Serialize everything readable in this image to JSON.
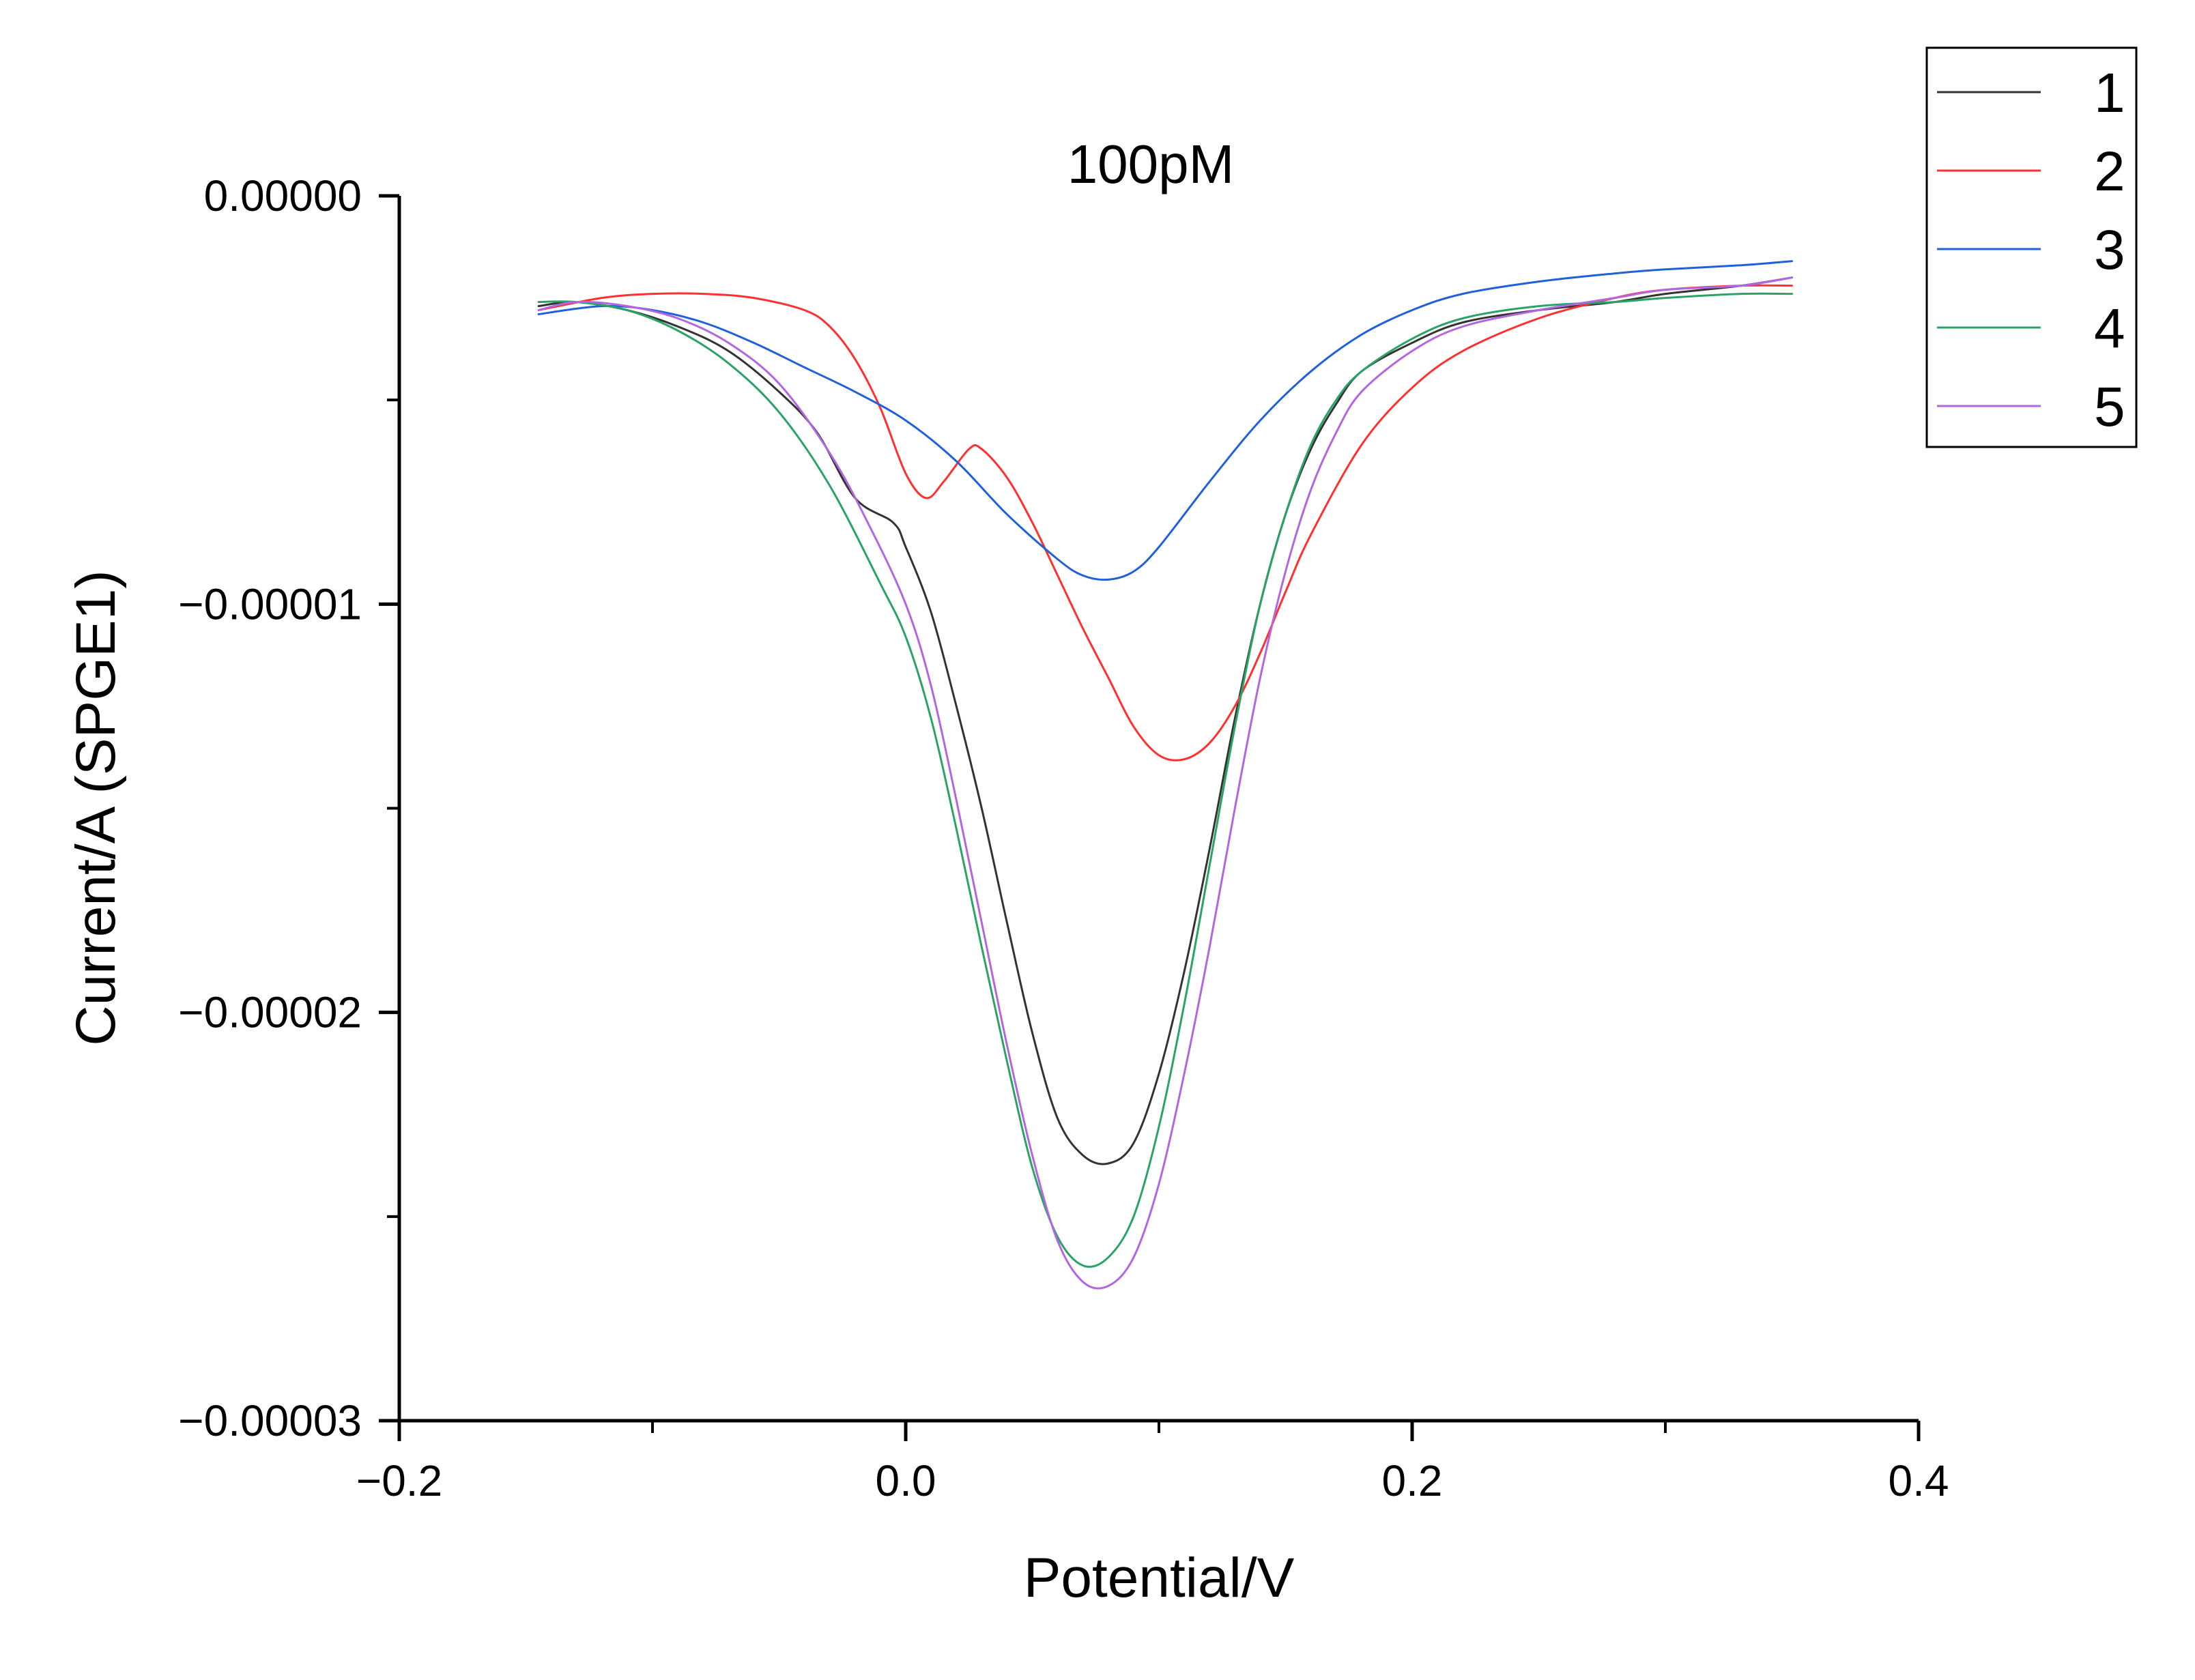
{
  "chart_data": {
    "type": "line",
    "title": "100pM",
    "xlabel": "Potential/V",
    "ylabel": "Current/A (SPGE1)",
    "xlim": [
      -0.2,
      0.4
    ],
    "ylim": [
      -3e-05,
      0.0
    ],
    "xticks": [
      -0.2,
      0.0,
      0.2,
      0.4
    ],
    "xtick_labels": [
      "−0.2",
      "0.0",
      "0.2",
      "0.4"
    ],
    "yticks": [
      0.0,
      -1e-05,
      -2e-05,
      -3e-05
    ],
    "ytick_labels": [
      "0.00000",
      "−0.00001",
      "−0.00002",
      "−0.00003"
    ],
    "legend_position": "top-right",
    "grid": false,
    "series": [
      {
        "name": "1",
        "color": "#333333",
        "x": [
          -0.145,
          -0.13,
          -0.11,
          -0.09,
          -0.07,
          -0.05,
          -0.035,
          -0.02,
          -0.005,
          0.0,
          0.01,
          0.02,
          0.03,
          0.04,
          0.05,
          0.06,
          0.07,
          0.08,
          0.09,
          0.1,
          0.11,
          0.12,
          0.13,
          0.14,
          0.15,
          0.16,
          0.17,
          0.18,
          0.2,
          0.22,
          0.25,
          0.28,
          0.3,
          0.33,
          0.35
        ],
        "y": [
          -2.7e-06,
          -2.6e-06,
          -2.8e-06,
          -3.2e-06,
          -3.8e-06,
          -4.8e-06,
          -5.8e-06,
          -7.4e-06,
          -8e-06,
          -8.6e-06,
          -1.02e-05,
          -1.25e-05,
          -1.5e-05,
          -1.78e-05,
          -2.05e-05,
          -2.26e-05,
          -2.35e-05,
          -2.37e-05,
          -2.32e-05,
          -2.15e-05,
          -1.9e-05,
          -1.6e-05,
          -1.28e-05,
          -1e-05,
          -7.8e-06,
          -6.2e-06,
          -5.1e-06,
          -4.3e-06,
          -3.6e-06,
          -3.1e-06,
          -2.8e-06,
          -2.6e-06,
          -2.4e-06,
          -2.2e-06,
          -2e-06
        ]
      },
      {
        "name": "2",
        "color": "#ff3030",
        "x": [
          -0.145,
          -0.12,
          -0.1,
          -0.08,
          -0.06,
          -0.04,
          -0.03,
          -0.02,
          -0.01,
          0.0,
          0.008,
          0.015,
          0.025,
          0.03,
          0.04,
          0.05,
          0.06,
          0.07,
          0.08,
          0.09,
          0.1,
          0.11,
          0.12,
          0.13,
          0.14,
          0.15,
          0.16,
          0.18,
          0.2,
          0.22,
          0.25,
          0.28,
          0.3,
          0.33,
          0.35
        ],
        "y": [
          -2.8e-06,
          -2.5e-06,
          -2.4e-06,
          -2.4e-06,
          -2.5e-06,
          -2.8e-06,
          -3.2e-06,
          -4e-06,
          -5.2e-06,
          -6.8e-06,
          -7.4e-06,
          -7e-06,
          -6.2e-06,
          -6.2e-06,
          -6.9e-06,
          -8e-06,
          -9.3e-06,
          -1.06e-05,
          -1.18e-05,
          -1.3e-05,
          -1.37e-05,
          -1.38e-05,
          -1.34e-05,
          -1.25e-05,
          -1.12e-05,
          -9.7e-06,
          -8.3e-06,
          -6.1e-06,
          -4.7e-06,
          -3.8e-06,
          -3e-06,
          -2.5e-06,
          -2.3e-06,
          -2.2e-06,
          -2.2e-06
        ]
      },
      {
        "name": "3",
        "color": "#2060d8",
        "x": [
          -0.145,
          -0.12,
          -0.1,
          -0.08,
          -0.06,
          -0.04,
          -0.02,
          0.0,
          0.02,
          0.04,
          0.06,
          0.07,
          0.08,
          0.09,
          0.1,
          0.12,
          0.14,
          0.16,
          0.18,
          0.2,
          0.22,
          0.25,
          0.28,
          0.3,
          0.33,
          0.35
        ],
        "y": [
          -2.9e-06,
          -2.7e-06,
          -2.8e-06,
          -3.1e-06,
          -3.6e-06,
          -4.2e-06,
          -4.8e-06,
          -5.5e-06,
          -6.5e-06,
          -7.8e-06,
          -8.9e-06,
          -9.3e-06,
          -9.4e-06,
          -9.2e-06,
          -8.6e-06,
          -7e-06,
          -5.5e-06,
          -4.3e-06,
          -3.4e-06,
          -2.8e-06,
          -2.4e-06,
          -2.1e-06,
          -1.9e-06,
          -1.8e-06,
          -1.7e-06,
          -1.6e-06
        ]
      },
      {
        "name": "4",
        "color": "#2aa366",
        "x": [
          -0.145,
          -0.13,
          -0.11,
          -0.09,
          -0.07,
          -0.05,
          -0.03,
          -0.01,
          0.0,
          0.01,
          0.02,
          0.03,
          0.04,
          0.05,
          0.06,
          0.07,
          0.08,
          0.09,
          0.1,
          0.11,
          0.12,
          0.13,
          0.14,
          0.15,
          0.16,
          0.17,
          0.18,
          0.2,
          0.22,
          0.25,
          0.28,
          0.3,
          0.33,
          0.35
        ],
        "y": [
          -2.6e-06,
          -2.6e-06,
          -2.8e-06,
          -3.3e-06,
          -4.1e-06,
          -5.3e-06,
          -7.1e-06,
          -9.5e-06,
          -1.08e-05,
          -1.28e-05,
          -1.55e-05,
          -1.84e-05,
          -2.12e-05,
          -2.38e-05,
          -2.55e-05,
          -2.62e-05,
          -2.6e-05,
          -2.5e-05,
          -2.28e-05,
          -1.98e-05,
          -1.64e-05,
          -1.3e-05,
          -1e-05,
          -7.8e-06,
          -6.1e-06,
          -5e-06,
          -4.3e-06,
          -3.5e-06,
          -3e-06,
          -2.7e-06,
          -2.6e-06,
          -2.5e-06,
          -2.4e-06,
          -2.4e-06
        ]
      },
      {
        "name": "5",
        "color": "#b266e0",
        "x": [
          -0.145,
          -0.13,
          -0.11,
          -0.09,
          -0.07,
          -0.05,
          -0.03,
          -0.015,
          0.0,
          0.01,
          0.02,
          0.03,
          0.04,
          0.05,
          0.06,
          0.07,
          0.08,
          0.09,
          0.1,
          0.11,
          0.12,
          0.13,
          0.14,
          0.15,
          0.16,
          0.17,
          0.18,
          0.2,
          0.22,
          0.25,
          0.28,
          0.3,
          0.33,
          0.35
        ],
        "y": [
          -2.8e-06,
          -2.6e-06,
          -2.7e-06,
          -3e-06,
          -3.6e-06,
          -4.6e-06,
          -6.3e-06,
          -8e-06,
          -1e-05,
          -1.2e-05,
          -1.48e-05,
          -1.78e-05,
          -2.08e-05,
          -2.35e-05,
          -2.56e-05,
          -2.66e-05,
          -2.67e-05,
          -2.6e-05,
          -2.42e-05,
          -2.15e-05,
          -1.84e-05,
          -1.5e-05,
          -1.18e-05,
          -9.2e-06,
          -7.2e-06,
          -5.8e-06,
          -4.8e-06,
          -3.8e-06,
          -3.2e-06,
          -2.8e-06,
          -2.5e-06,
          -2.3e-06,
          -2.2e-06,
          -2e-06
        ]
      }
    ]
  }
}
